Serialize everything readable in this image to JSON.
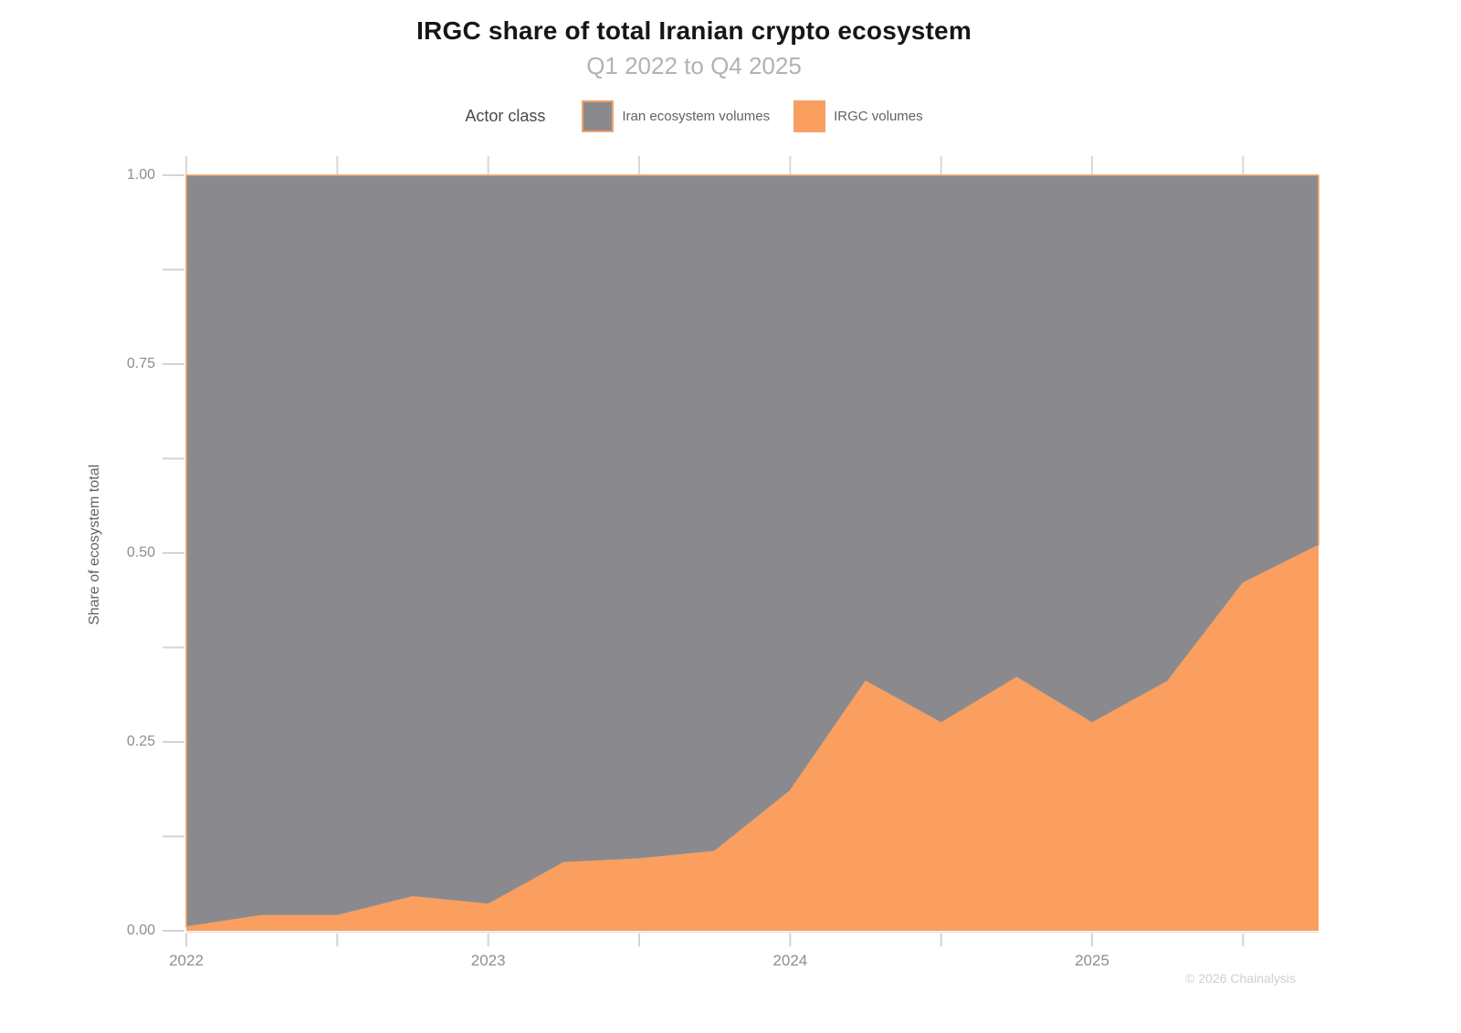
{
  "header": {
    "title": "IRGC share of total Iranian crypto ecosystem",
    "subtitle": "Q1 2022 to Q4 2025"
  },
  "legend": {
    "label": "Actor class",
    "items": [
      {
        "label": "Iran ecosystem volumes",
        "color": "#8A8A8E"
      },
      {
        "label": "IRGC volumes",
        "color": "#FA9F5F"
      }
    ]
  },
  "chart_data": {
    "type": "area",
    "stacked": true,
    "normalized": true,
    "total": 1.0,
    "title": "IRGC share of total Iranian crypto ecosystem",
    "subtitle": "Q1 2022 to Q4 2025",
    "xlabel": "",
    "ylabel": "Share of ecosystem total",
    "x": [
      "Q1 2022",
      "Q2 2022",
      "Q3 2022",
      "Q4 2022",
      "Q1 2023",
      "Q2 2023",
      "Q3 2023",
      "Q4 2023",
      "Q1 2024",
      "Q2 2024",
      "Q3 2024",
      "Q4 2024",
      "Q1 2025",
      "Q2 2025",
      "Q3 2025",
      "Q4 2025"
    ],
    "series": [
      {
        "name": "IRGC volumes",
        "color": "#FA9F5F",
        "values": [
          0.005,
          0.02,
          0.02,
          0.045,
          0.035,
          0.09,
          0.095,
          0.105,
          0.185,
          0.33,
          0.275,
          0.335,
          0.275,
          0.33,
          0.46,
          0.51
        ]
      },
      {
        "name": "Iran ecosystem volumes",
        "color": "#8A8A8E",
        "values": [
          0.995,
          0.98,
          0.98,
          0.955,
          0.965,
          0.91,
          0.905,
          0.895,
          0.815,
          0.67,
          0.725,
          0.665,
          0.725,
          0.67,
          0.54,
          0.49
        ]
      }
    ],
    "ylim": [
      0,
      1
    ],
    "y_tick_labels": [
      "1.00",
      "0.75",
      "0.50",
      "0.25",
      "0.00"
    ],
    "y_tick_values": [
      1.0,
      0.75,
      0.5,
      0.25,
      0.0
    ],
    "y_minor_tick_values": [
      0.875,
      0.625,
      0.375,
      0.125
    ],
    "x_tick_labels": [
      "2022",
      "2023",
      "2024",
      "2025"
    ],
    "x_tick_quarter_index": [
      0,
      4,
      8,
      12
    ],
    "x_minor_tick_quarter_index": [
      2,
      6,
      10,
      14
    ],
    "grid": "off",
    "legend_position": "top",
    "area_outline_color": "#F0A26A"
  },
  "footer": {
    "copyright": "© 2026 Chainalysis"
  }
}
